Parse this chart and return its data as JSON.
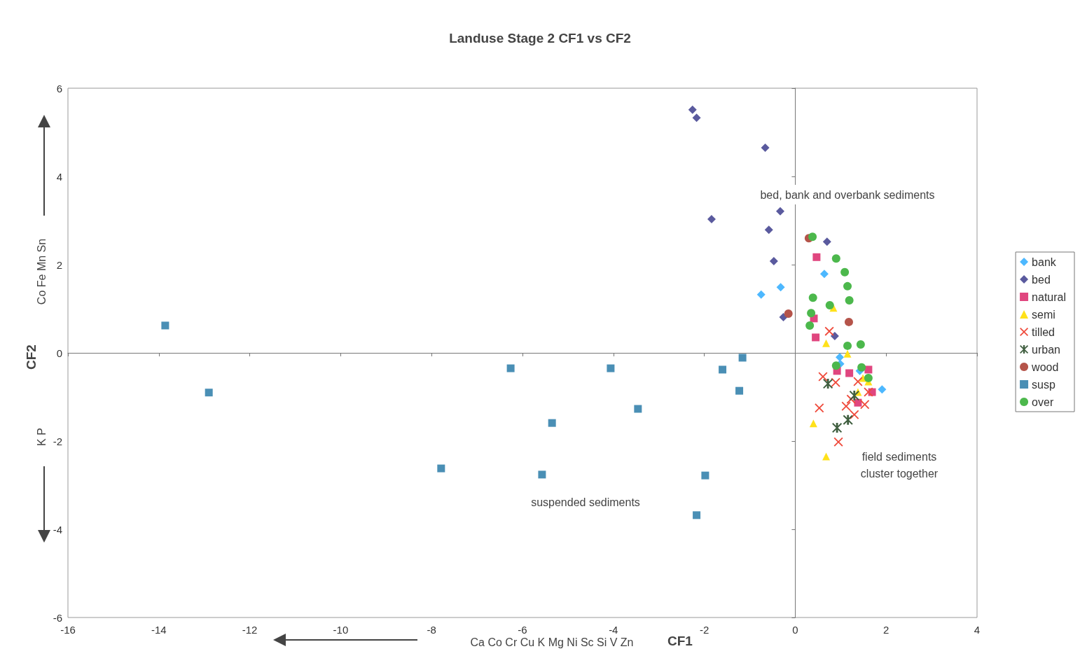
{
  "chart_data": {
    "type": "scatter",
    "title": "Landuse Stage 2 CF1 vs CF2",
    "xlabel": "CF1",
    "ylabel": "CF2",
    "xlim": [
      -16,
      4
    ],
    "xticks": [
      -16,
      -14,
      -12,
      -10,
      -8,
      -6,
      -4,
      -2,
      0,
      2,
      4
    ],
    "ylim": [
      -6,
      6
    ],
    "yticks": [
      -6,
      -4,
      -2,
      0,
      2,
      4,
      6
    ],
    "legend": "right",
    "annotations": [
      "bed, bank and overbank sediments",
      "field sediments\ncluster together",
      "suspended sediments",
      "Co Fe Mn Sn",
      "K P",
      "Ca Co Cr Cu K Mg Ni Sc Si V Zn"
    ],
    "series": [
      {
        "name": "bank",
        "color": "#4db8ff",
        "marker": "diamond",
        "x": [
          -0.75,
          -0.32,
          0.64,
          0.98,
          1.42,
          1.91,
          0.99
        ],
        "values": [
          1.32,
          1.49,
          1.79,
          -0.1,
          -0.41,
          -0.83,
          -0.25
        ]
      },
      {
        "name": "bed",
        "color": "#5a5a9e",
        "marker": "diamond",
        "x": [
          -2.26,
          -2.17,
          -0.66,
          -0.33,
          -1.84,
          -0.58,
          -0.47,
          -0.26,
          0.7,
          0.87
        ],
        "values": [
          5.51,
          5.33,
          4.65,
          3.21,
          3.03,
          2.79,
          2.08,
          0.81,
          2.52,
          0.38
        ]
      },
      {
        "name": "natural",
        "color": "#e0467f",
        "marker": "square",
        "x": [
          0.47,
          0.41,
          0.45,
          1.61,
          1.19,
          1.69,
          1.38,
          0.92
        ],
        "values": [
          2.17,
          0.78,
          0.35,
          -0.38,
          -0.46,
          -0.89,
          -1.13,
          -0.41
        ]
      },
      {
        "name": "semi",
        "color": "#ffe11a",
        "marker": "triangle",
        "x": [
          0.84,
          0.68,
          1.15,
          1.49,
          1.38,
          0.4,
          0.68,
          1.61
        ],
        "values": [
          1.02,
          0.22,
          -0.02,
          -0.57,
          -0.89,
          -1.6,
          -2.35,
          -0.65
        ]
      },
      {
        "name": "tilled",
        "color": "#ef4a3b",
        "marker": "cross",
        "x": [
          0.75,
          0.61,
          0.89,
          0.53,
          1.12,
          1.3,
          0.95,
          1.38,
          1.61,
          1.53,
          1.23
        ],
        "values": [
          0.49,
          -0.54,
          -0.67,
          -1.25,
          -1.21,
          -1.4,
          -2.02,
          -0.65,
          -0.89,
          -1.17,
          -1.05
        ]
      },
      {
        "name": "urban",
        "color": "#3f5e3f",
        "marker": "star",
        "x": [
          0.72,
          1.3,
          1.16,
          0.92
        ],
        "values": [
          -0.7,
          -0.97,
          -1.52,
          -1.7
        ]
      },
      {
        "name": "wood",
        "color": "#b5544a",
        "marker": "circle",
        "x": [
          0.3,
          -0.15,
          1.18
        ],
        "values": [
          2.6,
          0.89,
          0.7
        ]
      },
      {
        "name": "susp",
        "color": "#4a8fb5",
        "marker": "square",
        "x": [
          -13.86,
          -12.9,
          -6.26,
          -4.06,
          -5.35,
          -3.46,
          -7.79,
          -5.57,
          -1.98,
          -2.17,
          -1.6,
          -1.16,
          -1.23
        ],
        "values": [
          0.62,
          -0.9,
          -0.35,
          -0.35,
          -1.59,
          -1.27,
          -2.62,
          -2.76,
          -2.78,
          -3.68,
          -0.38,
          -0.11,
          -0.86
        ]
      },
      {
        "name": "over",
        "color": "#4cb84c",
        "marker": "circle",
        "x": [
          0.38,
          0.9,
          1.09,
          1.15,
          1.19,
          0.39,
          0.76,
          0.35,
          0.32,
          1.15,
          1.44,
          0.9,
          1.61,
          1.46
        ],
        "values": [
          2.63,
          2.14,
          1.83,
          1.51,
          1.19,
          1.25,
          1.08,
          0.9,
          0.62,
          0.16,
          0.19,
          -0.29,
          -0.57,
          -0.33
        ]
      }
    ]
  }
}
